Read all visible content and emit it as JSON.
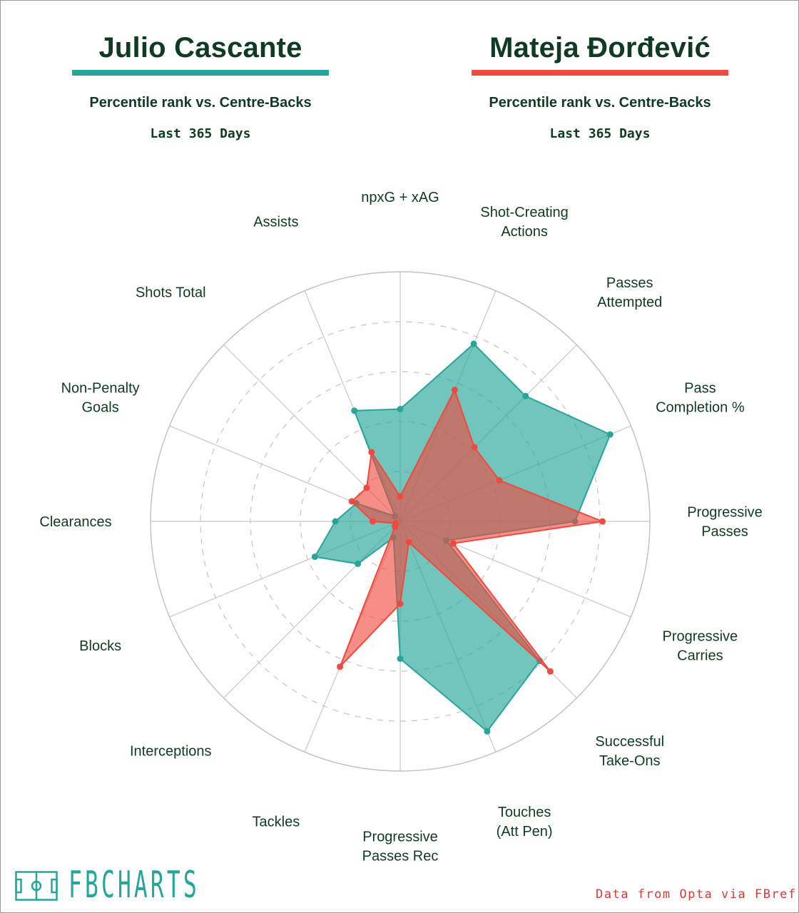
{
  "header": {
    "players": [
      {
        "name": "Julio Cascante",
        "color": "#26a69a"
      },
      {
        "name": "Mateja Đorđević",
        "color": "#f0493e"
      }
    ],
    "subtitle": "Percentile rank vs. Centre-Backs",
    "period": "Last 365 Days"
  },
  "footer": {
    "brand": "FBCHARTS",
    "credit": "Data from Opta via FBref",
    "brand_icon": "football-pitch-icon"
  },
  "chart_data": {
    "type": "radar",
    "scale": [
      0,
      100
    ],
    "gridlines": [
      20,
      40,
      60,
      80
    ],
    "grid": true,
    "categories": [
      "npxG + xAG",
      "Shot-Creating Actions",
      "Passes Attempted",
      "Pass Completion %",
      "Progressive Passes",
      "Progressive Carries",
      "Successful Take-Ons",
      "Touches (Att Pen)",
      "Progressive Passes Rec",
      "Tackles",
      "Interceptions",
      "Blocks",
      "Clearances",
      "Non-Penalty Goals",
      "Shots Total",
      "Assists"
    ],
    "series": [
      {
        "name": "Julio Cascante",
        "color": "#26a69a",
        "values": [
          45,
          77,
          71,
          91,
          70,
          20,
          79,
          91,
          55,
          7,
          24,
          37,
          26,
          19,
          3,
          48
        ]
      },
      {
        "name": "Mateja Đorđević",
        "color": "#f0493e",
        "values": [
          10,
          57,
          42,
          43,
          81,
          23,
          85,
          9,
          33,
          63,
          3,
          2,
          11,
          21,
          19,
          30
        ]
      }
    ]
  }
}
